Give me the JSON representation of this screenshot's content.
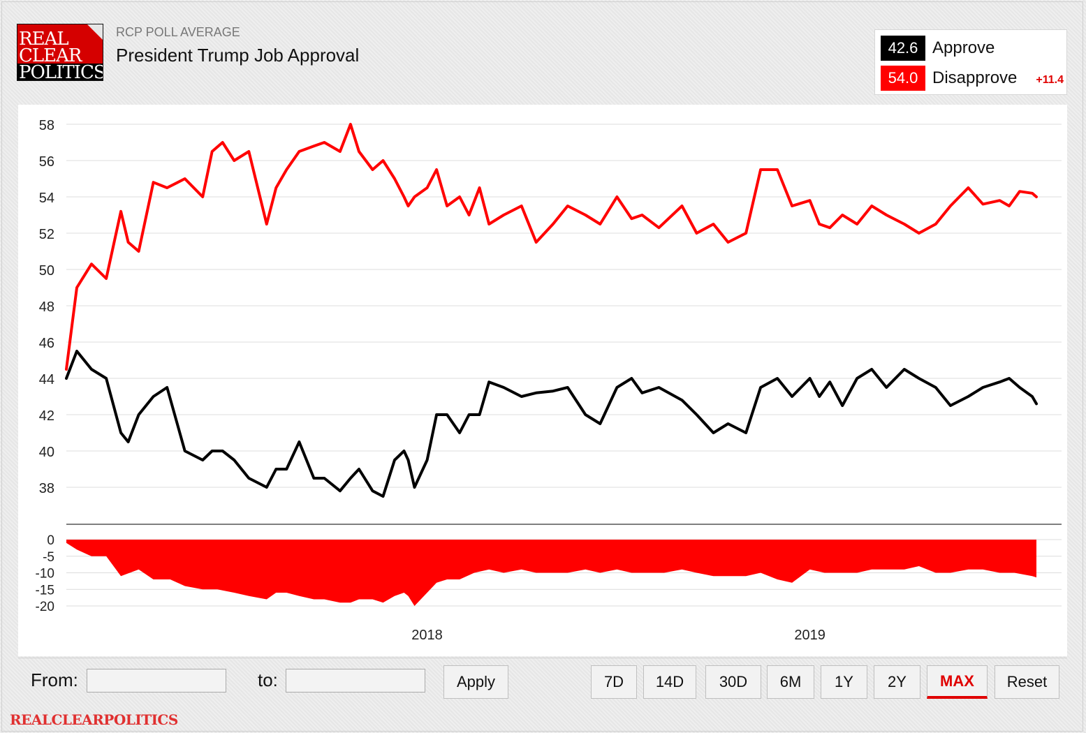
{
  "logo": {
    "line1": "REAL",
    "line2": "CLEAR",
    "line3": "POLITICS"
  },
  "header": {
    "subtitle": "RCP POLL AVERAGE",
    "title": "President Trump Job Approval"
  },
  "legend": {
    "approve": {
      "value": "42.6",
      "label": "Approve",
      "color": "#000000"
    },
    "disapprove": {
      "value": "54.0",
      "label": "Disapprove",
      "color": "#ff0000"
    },
    "spread": "+11.4"
  },
  "controls": {
    "from_label": "From:",
    "to_label": "to:",
    "from_value": "",
    "to_value": "",
    "apply_label": "Apply",
    "ranges": [
      "7D",
      "14D",
      "30D",
      "6M",
      "1Y",
      "2Y",
      "MAX"
    ],
    "active_range": "MAX",
    "reset_label": "Reset"
  },
  "footer": {
    "brand": "REALCLEARPOLITICS"
  },
  "chart_data": [
    {
      "type": "line",
      "title": "",
      "xlabel": "",
      "ylabel": "",
      "ylim": [
        36.5,
        58.5
      ],
      "yticks": [
        58,
        56,
        54,
        52,
        50,
        48,
        46,
        44,
        42,
        40,
        38
      ],
      "xticks": [
        {
          "label": "2018",
          "x": "2018-01-01"
        },
        {
          "label": "2019",
          "x": "2019-01-01"
        }
      ],
      "xlim": [
        "2017-01-22",
        "2019-08-05"
      ],
      "grid": true,
      "series": [
        {
          "name": "Disapprove",
          "color": "#ff0000",
          "x": [
            "2017-01-22",
            "2017-02-01",
            "2017-02-15",
            "2017-03-01",
            "2017-03-15",
            "2017-03-22",
            "2017-04-01",
            "2017-04-15",
            "2017-04-28",
            "2017-05-15",
            "2017-06-01",
            "2017-06-10",
            "2017-06-20",
            "2017-07-01",
            "2017-07-15",
            "2017-08-01",
            "2017-08-10",
            "2017-08-20",
            "2017-09-01",
            "2017-09-15",
            "2017-09-25",
            "2017-10-10",
            "2017-10-20",
            "2017-10-28",
            "2017-11-10",
            "2017-11-20",
            "2017-12-01",
            "2017-12-10",
            "2017-12-14",
            "2017-12-20",
            "2018-01-01",
            "2018-01-10",
            "2018-01-20",
            "2018-02-01",
            "2018-02-10",
            "2018-02-20",
            "2018-03-01",
            "2018-03-15",
            "2018-04-01",
            "2018-04-15",
            "2018-05-01",
            "2018-05-15",
            "2018-06-01",
            "2018-06-15",
            "2018-07-01",
            "2018-07-15",
            "2018-07-25",
            "2018-08-10",
            "2018-09-01",
            "2018-09-15",
            "2018-10-01",
            "2018-10-15",
            "2018-11-01",
            "2018-11-15",
            "2018-12-01",
            "2018-12-15",
            "2019-01-01",
            "2019-01-10",
            "2019-01-20",
            "2019-02-01",
            "2019-02-15",
            "2019-03-01",
            "2019-03-15",
            "2019-04-01",
            "2019-04-15",
            "2019-05-01",
            "2019-05-15",
            "2019-06-01",
            "2019-06-15",
            "2019-07-01",
            "2019-07-10",
            "2019-07-20",
            "2019-08-01",
            "2019-08-05"
          ],
          "values": [
            44.5,
            49.0,
            50.3,
            49.5,
            53.2,
            51.5,
            51.0,
            54.8,
            54.5,
            55.0,
            54.0,
            56.5,
            57.0,
            56.0,
            56.5,
            52.5,
            54.5,
            55.5,
            56.5,
            56.8,
            57.0,
            56.5,
            58.0,
            56.5,
            55.5,
            56.0,
            55.0,
            54.0,
            53.5,
            54.0,
            54.5,
            55.5,
            53.5,
            54.0,
            53.0,
            54.5,
            52.5,
            53.0,
            53.5,
            51.5,
            52.5,
            53.5,
            53.0,
            52.5,
            54.0,
            52.8,
            53.0,
            52.3,
            53.5,
            52.0,
            52.5,
            51.5,
            52.0,
            55.5,
            55.5,
            53.5,
            53.8,
            52.5,
            52.3,
            53.0,
            52.5,
            53.5,
            53.0,
            52.5,
            52.0,
            52.5,
            53.5,
            54.5,
            53.6,
            53.8,
            53.5,
            54.3,
            54.2,
            54.0
          ]
        },
        {
          "name": "Approve",
          "color": "#000000",
          "x": [
            "2017-01-22",
            "2017-02-01",
            "2017-02-15",
            "2017-03-01",
            "2017-03-15",
            "2017-03-22",
            "2017-04-01",
            "2017-04-15",
            "2017-04-28",
            "2017-05-15",
            "2017-06-01",
            "2017-06-10",
            "2017-06-20",
            "2017-07-01",
            "2017-07-15",
            "2017-08-01",
            "2017-08-10",
            "2017-08-20",
            "2017-09-01",
            "2017-09-15",
            "2017-09-25",
            "2017-10-10",
            "2017-10-20",
            "2017-10-28",
            "2017-11-10",
            "2017-11-20",
            "2017-12-01",
            "2017-12-10",
            "2017-12-14",
            "2017-12-20",
            "2018-01-01",
            "2018-01-10",
            "2018-01-20",
            "2018-02-01",
            "2018-02-10",
            "2018-02-20",
            "2018-03-01",
            "2018-03-15",
            "2018-04-01",
            "2018-04-15",
            "2018-05-01",
            "2018-05-15",
            "2018-06-01",
            "2018-06-15",
            "2018-07-01",
            "2018-07-15",
            "2018-07-25",
            "2018-08-10",
            "2018-09-01",
            "2018-09-15",
            "2018-10-01",
            "2018-10-15",
            "2018-11-01",
            "2018-11-15",
            "2018-12-01",
            "2018-12-15",
            "2019-01-01",
            "2019-01-10",
            "2019-01-20",
            "2019-02-01",
            "2019-02-15",
            "2019-03-01",
            "2019-03-15",
            "2019-04-01",
            "2019-04-15",
            "2019-05-01",
            "2019-05-15",
            "2019-06-01",
            "2019-06-15",
            "2019-07-01",
            "2019-07-10",
            "2019-07-20",
            "2019-08-01",
            "2019-08-05"
          ],
          "values": [
            44.0,
            45.5,
            44.5,
            44.0,
            41.0,
            40.5,
            42.0,
            43.0,
            43.5,
            40.0,
            39.5,
            40.0,
            40.0,
            39.5,
            38.5,
            38.0,
            39.0,
            39.0,
            40.5,
            38.5,
            38.5,
            37.8,
            38.5,
            39.0,
            37.8,
            37.5,
            39.5,
            40.0,
            39.5,
            38.0,
            39.5,
            42.0,
            42.0,
            41.0,
            42.0,
            42.0,
            43.8,
            43.5,
            43.0,
            43.2,
            43.3,
            43.5,
            42.0,
            41.5,
            43.5,
            44.0,
            43.2,
            43.5,
            42.8,
            42.0,
            41.0,
            41.5,
            41.0,
            43.5,
            44.0,
            43.0,
            44.0,
            43.0,
            43.8,
            42.5,
            44.0,
            44.5,
            43.5,
            44.5,
            44.0,
            43.5,
            42.5,
            43.0,
            43.5,
            43.8,
            44.0,
            43.5,
            43.0,
            42.6
          ]
        }
      ]
    },
    {
      "type": "area",
      "title": "",
      "xlabel": "",
      "ylabel": "",
      "ylim": [
        -22,
        0
      ],
      "yticks": [
        0,
        -5,
        -10,
        -15,
        -20
      ],
      "xlim": [
        "2017-01-22",
        "2019-08-05"
      ],
      "grid": true,
      "series": [
        {
          "name": "",
          "color": "#ff0000",
          "x": [
            "2017-01-22",
            "2017-02-01",
            "2017-02-15",
            "2017-03-01",
            "2017-03-15",
            "2017-04-01",
            "2017-04-15",
            "2017-05-01",
            "2017-05-15",
            "2017-06-01",
            "2017-06-15",
            "2017-07-01",
            "2017-07-15",
            "2017-08-01",
            "2017-08-10",
            "2017-08-20",
            "2017-09-01",
            "2017-09-15",
            "2017-09-25",
            "2017-10-10",
            "2017-10-20",
            "2017-10-28",
            "2017-11-10",
            "2017-11-20",
            "2017-12-01",
            "2017-12-10",
            "2017-12-14",
            "2017-12-20",
            "2018-01-01",
            "2018-01-10",
            "2018-01-20",
            "2018-02-01",
            "2018-02-15",
            "2018-03-01",
            "2018-03-15",
            "2018-04-01",
            "2018-04-15",
            "2018-05-01",
            "2018-05-15",
            "2018-06-01",
            "2018-06-15",
            "2018-07-01",
            "2018-07-15",
            "2018-08-01",
            "2018-08-15",
            "2018-09-01",
            "2018-09-15",
            "2018-10-01",
            "2018-10-15",
            "2018-11-01",
            "2018-11-15",
            "2018-12-01",
            "2018-12-15",
            "2019-01-01",
            "2019-01-15",
            "2019-02-01",
            "2019-02-15",
            "2019-03-01",
            "2019-03-15",
            "2019-04-01",
            "2019-04-15",
            "2019-05-01",
            "2019-05-15",
            "2019-06-01",
            "2019-06-15",
            "2019-07-01",
            "2019-07-15",
            "2019-08-01",
            "2019-08-05"
          ],
          "values": [
            -1,
            -3,
            -5,
            -5,
            -11,
            -9,
            -12,
            -12,
            -14,
            -15,
            -15,
            -16,
            -17,
            -18,
            -16,
            -16,
            -17,
            -18,
            -18,
            -19,
            -19,
            -18,
            -18,
            -19,
            -17,
            -16,
            -17,
            -20,
            -16,
            -13,
            -12,
            -12,
            -10,
            -9,
            -10,
            -9,
            -10,
            -10,
            -10,
            -9,
            -10,
            -9,
            -10,
            -10,
            -10,
            -9,
            -10,
            -11,
            -11,
            -11,
            -10,
            -12,
            -13,
            -9,
            -10,
            -10,
            -10,
            -9,
            -9,
            -9,
            -8,
            -10,
            -10,
            -9,
            -9,
            -10,
            -10,
            -11,
            -11.4
          ]
        }
      ]
    }
  ]
}
